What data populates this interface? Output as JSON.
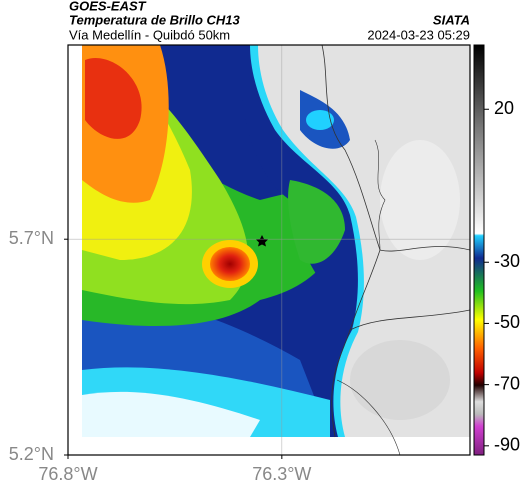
{
  "header": {
    "satellite": "GOES-EAST",
    "title": "Temperatura de Brillo CH13",
    "subtitle": "Vía Medellín - Quibdó 50km",
    "source": "SIATA",
    "datetime": "2024-03-23 05:29"
  },
  "map": {
    "xlim": [
      -76.8,
      -75.86
    ],
    "ylim": [
      5.2,
      6.15
    ],
    "xticks": [
      {
        "value": -76.8,
        "label": "76.8°W"
      },
      {
        "value": -76.3,
        "label": "76.3°W"
      }
    ],
    "yticks": [
      {
        "value": 5.2,
        "label": "5.2°N"
      },
      {
        "value": 5.7,
        "label": "5.7°N"
      }
    ]
  },
  "colorbar": {
    "lim": [
      -93,
      41
    ],
    "ticks": [
      20,
      -30,
      -50,
      -70,
      -90
    ]
  }
}
